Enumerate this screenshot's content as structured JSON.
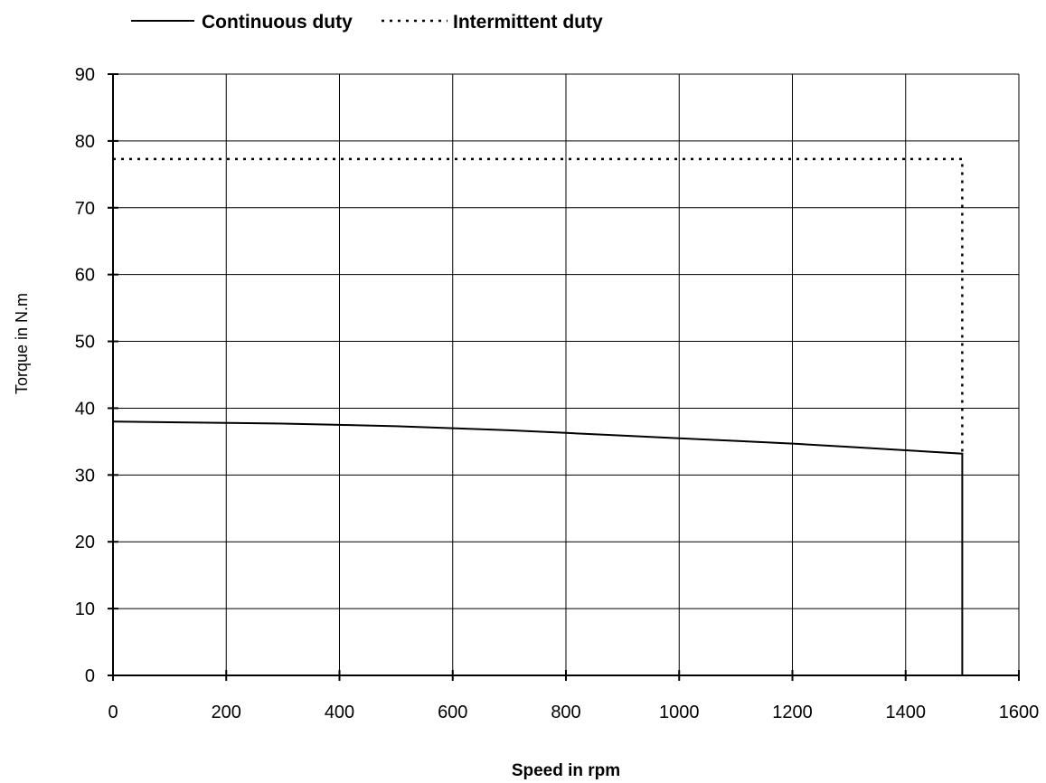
{
  "chart_data": {
    "type": "line",
    "title": "",
    "xlabel": "Speed in rpm",
    "ylabel": "Torque in N.m",
    "xlim": [
      0,
      1600
    ],
    "ylim": [
      0,
      90
    ],
    "xticks": [
      0,
      200,
      400,
      600,
      800,
      1000,
      1200,
      1400,
      1600
    ],
    "yticks": [
      0,
      10,
      20,
      30,
      40,
      50,
      60,
      70,
      80,
      90
    ],
    "grid": true,
    "legend_position": "top",
    "series": [
      {
        "name": "Continuous duty",
        "style": "solid",
        "color": "#000000",
        "x": [
          0,
          100,
          200,
          300,
          400,
          500,
          600,
          700,
          800,
          900,
          1000,
          1100,
          1200,
          1300,
          1400,
          1500,
          1500
        ],
        "y": [
          38.0,
          37.9,
          37.8,
          37.7,
          37.5,
          37.3,
          37.0,
          36.7,
          36.3,
          35.9,
          35.5,
          35.1,
          34.7,
          34.2,
          33.7,
          33.2,
          0
        ]
      },
      {
        "name": "Intermittent duty",
        "style": "dotted",
        "color": "#000000",
        "x": [
          0,
          1500,
          1500
        ],
        "y": [
          77.3,
          77.3,
          33.2
        ]
      }
    ]
  }
}
